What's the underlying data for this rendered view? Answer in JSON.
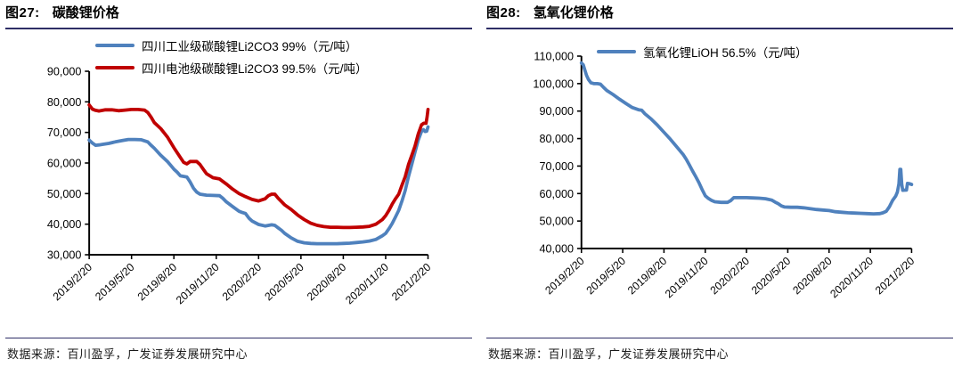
{
  "chart_data": [
    {
      "type": "line",
      "figure_label": "图27:",
      "title": "碳酸锂价格",
      "source": "数据来源：百川盈孚，广发证券发展研究中心",
      "unit": "元/吨",
      "grid": false,
      "legend_position": "top-center",
      "x_tick_labels": [
        "2019/2/20",
        "2019/5/20",
        "2019/8/20",
        "2019/11/20",
        "2020/2/20",
        "2020/5/20",
        "2020/8/20",
        "2020/11/20",
        "2021/2/20"
      ],
      "x_weeks_max": 104,
      "ylim": [
        30000,
        90000
      ],
      "y_tick_step": 10000,
      "y_tick_labels": [
        "30,000",
        "40,000",
        "50,000",
        "60,000",
        "70,000",
        "80,000",
        "90,000"
      ],
      "series": [
        {
          "name": "四川工业级碳酸锂Li2CO3 99%（元/吨）",
          "color": "#4F81BD",
          "points": [
            [
              0,
              67500
            ],
            [
              1,
              66500
            ],
            [
              2,
              65800
            ],
            [
              3,
              65900
            ],
            [
              4,
              66100
            ],
            [
              6,
              66400
            ],
            [
              8,
              66900
            ],
            [
              10,
              67300
            ],
            [
              12,
              67700
            ],
            [
              14,
              67700
            ],
            [
              16,
              67600
            ],
            [
              18,
              66900
            ],
            [
              19,
              65800
            ],
            [
              20,
              64800
            ],
            [
              22,
              62500
            ],
            [
              24,
              60500
            ],
            [
              26,
              58000
            ],
            [
              27,
              57000
            ],
            [
              28,
              55800
            ],
            [
              30,
              55400
            ],
            [
              31,
              53800
            ],
            [
              32,
              51800
            ],
            [
              33,
              50500
            ],
            [
              34,
              49800
            ],
            [
              36,
              49500
            ],
            [
              38,
              49400
            ],
            [
              40,
              49300
            ],
            [
              41,
              48500
            ],
            [
              42,
              47400
            ],
            [
              44,
              45800
            ],
            [
              46,
              44200
            ],
            [
              47,
              43800
            ],
            [
              48,
              43500
            ],
            [
              49,
              42000
            ],
            [
              50,
              41000
            ],
            [
              52,
              39900
            ],
            [
              54,
              39400
            ],
            [
              56,
              39800
            ],
            [
              57,
              39600
            ],
            [
              58,
              38800
            ],
            [
              59,
              38000
            ],
            [
              60,
              37000
            ],
            [
              62,
              35500
            ],
            [
              64,
              34400
            ],
            [
              66,
              33900
            ],
            [
              68,
              33700
            ],
            [
              70,
              33600
            ],
            [
              72,
              33600
            ],
            [
              74,
              33600
            ],
            [
              76,
              33600
            ],
            [
              78,
              33700
            ],
            [
              80,
              33800
            ],
            [
              82,
              34000
            ],
            [
              84,
              34200
            ],
            [
              86,
              34500
            ],
            [
              88,
              35000
            ],
            [
              90,
              36200
            ],
            [
              91,
              37000
            ],
            [
              92,
              38500
            ],
            [
              93,
              40200
            ],
            [
              94,
              42300
            ],
            [
              95,
              44500
            ],
            [
              96,
              47500
            ],
            [
              97,
              51000
            ],
            [
              98,
              55500
            ],
            [
              99,
              59500
            ],
            [
              100,
              63500
            ],
            [
              101,
              67500
            ],
            [
              102,
              70300
            ],
            [
              102.6,
              70900
            ],
            [
              103.1,
              70300
            ],
            [
              103.6,
              70400
            ],
            [
              104,
              71800
            ]
          ]
        },
        {
          "name": "四川电池级碳酸锂Li2CO3 99.5%（元/吨）",
          "color": "#C00000",
          "points": [
            [
              0,
              79000
            ],
            [
              1,
              77600
            ],
            [
              2,
              77200
            ],
            [
              3,
              77000
            ],
            [
              5,
              77400
            ],
            [
              7,
              77400
            ],
            [
              9,
              77100
            ],
            [
              11,
              77300
            ],
            [
              13,
              77500
            ],
            [
              15,
              77500
            ],
            [
              17,
              77300
            ],
            [
              18,
              76500
            ],
            [
              19,
              75000
            ],
            [
              20,
              73200
            ],
            [
              22,
              71200
            ],
            [
              24,
              68500
            ],
            [
              26,
              65000
            ],
            [
              28,
              61800
            ],
            [
              29,
              60200
            ],
            [
              30,
              59700
            ],
            [
              31,
              60500
            ],
            [
              33,
              60500
            ],
            [
              34,
              59500
            ],
            [
              35,
              58000
            ],
            [
              36,
              56500
            ],
            [
              38,
              55200
            ],
            [
              40,
              54800
            ],
            [
              42,
              53200
            ],
            [
              44,
              51500
            ],
            [
              46,
              50000
            ],
            [
              48,
              49000
            ],
            [
              50,
              48100
            ],
            [
              52,
              47600
            ],
            [
              54,
              48300
            ],
            [
              55,
              49300
            ],
            [
              56,
              49800
            ],
            [
              57,
              49800
            ],
            [
              58,
              48500
            ],
            [
              60,
              46300
            ],
            [
              62,
              44800
            ],
            [
              64,
              43000
            ],
            [
              66,
              41500
            ],
            [
              68,
              40300
            ],
            [
              70,
              39600
            ],
            [
              72,
              39200
            ],
            [
              74,
              39000
            ],
            [
              76,
              39000
            ],
            [
              78,
              38900
            ],
            [
              80,
              38900
            ],
            [
              82,
              39000
            ],
            [
              84,
              39100
            ],
            [
              86,
              39300
            ],
            [
              88,
              40000
            ],
            [
              90,
              41500
            ],
            [
              91,
              42800
            ],
            [
              92,
              44500
            ],
            [
              93,
              46500
            ],
            [
              94,
              48300
            ],
            [
              95,
              49800
            ],
            [
              96,
              52700
            ],
            [
              97,
              55500
            ],
            [
              98,
              59500
            ],
            [
              99,
              62500
            ],
            [
              100,
              65500
            ],
            [
              101,
              69500
            ],
            [
              102,
              72500
            ],
            [
              102.7,
              73000
            ],
            [
              103.4,
              73000
            ],
            [
              103.7,
              75000
            ],
            [
              104,
              77500
            ]
          ]
        }
      ]
    },
    {
      "type": "line",
      "figure_label": "图28:",
      "title": "氢氧化锂价格",
      "source": "数据来源：百川盈孚，广发证券发展研究中心",
      "unit": "元/吨",
      "grid": false,
      "legend_position": "top-center",
      "x_tick_labels": [
        "2019/2/20",
        "2019/5/20",
        "2019/8/20",
        "2019/11/20",
        "2020/2/20",
        "2020/5/20",
        "2020/8/20",
        "2020/11/20",
        "2021/2/20"
      ],
      "x_weeks_max": 104,
      "ylim": [
        40000,
        110000
      ],
      "y_tick_step": 10000,
      "y_tick_labels": [
        "40,000",
        "50,000",
        "60,000",
        "70,000",
        "80,000",
        "90,000",
        "100,000",
        "110,000"
      ],
      "series": [
        {
          "name": "氢氧化锂LiOH 56.5%（元/吨）",
          "color": "#4F81BD",
          "points": [
            [
              0,
              107500
            ],
            [
              0.6,
              106800
            ],
            [
              1,
              105200
            ],
            [
              1.6,
              103000
            ],
            [
              2.2,
              101500
            ],
            [
              3,
              100300
            ],
            [
              4,
              100000
            ],
            [
              5,
              100000
            ],
            [
              6,
              99800
            ],
            [
              7,
              98600
            ],
            [
              8,
              97500
            ],
            [
              10,
              96000
            ],
            [
              12,
              94300
            ],
            [
              14,
              92800
            ],
            [
              16,
              91300
            ],
            [
              18,
              90500
            ],
            [
              19,
              90300
            ],
            [
              20,
              89000
            ],
            [
              22,
              87100
            ],
            [
              24,
              84800
            ],
            [
              26,
              82300
            ],
            [
              28,
              79800
            ],
            [
              30,
              77000
            ],
            [
              32,
              74300
            ],
            [
              33,
              72500
            ],
            [
              34,
              70400
            ],
            [
              35,
              68200
            ],
            [
              36,
              66200
            ],
            [
              37,
              64000
            ],
            [
              38,
              61500
            ],
            [
              39,
              59200
            ],
            [
              40,
              58200
            ],
            [
              41,
              57500
            ],
            [
              42,
              57000
            ],
            [
              44,
              56800
            ],
            [
              46,
              56800
            ],
            [
              47,
              57400
            ],
            [
              48,
              58500
            ],
            [
              50,
              58500
            ],
            [
              52,
              58500
            ],
            [
              54,
              58400
            ],
            [
              56,
              58300
            ],
            [
              58,
              58100
            ],
            [
              60,
              57600
            ],
            [
              61,
              56900
            ],
            [
              62,
              56300
            ],
            [
              63,
              55500
            ],
            [
              64,
              55100
            ],
            [
              66,
              55000
            ],
            [
              68,
              55000
            ],
            [
              70,
              54800
            ],
            [
              72,
              54500
            ],
            [
              74,
              54200
            ],
            [
              76,
              54000
            ],
            [
              78,
              53800
            ],
            [
              80,
              53400
            ],
            [
              82,
              53200
            ],
            [
              84,
              53000
            ],
            [
              86,
              52900
            ],
            [
              88,
              52800
            ],
            [
              90,
              52700
            ],
            [
              92,
              52600
            ],
            [
              94,
              52700
            ],
            [
              95,
              53000
            ],
            [
              96,
              53500
            ],
            [
              97,
              55200
            ],
            [
              98,
              57500
            ],
            [
              99,
              59100
            ],
            [
              99.5,
              60500
            ],
            [
              100,
              63500
            ],
            [
              100.3,
              68800
            ],
            [
              100.6,
              68800
            ],
            [
              100.9,
              63500
            ],
            [
              101.2,
              61200
            ],
            [
              102.4,
              61300
            ],
            [
              102.7,
              63700
            ],
            [
              103.3,
              63600
            ],
            [
              104,
              63300
            ]
          ]
        }
      ]
    }
  ]
}
